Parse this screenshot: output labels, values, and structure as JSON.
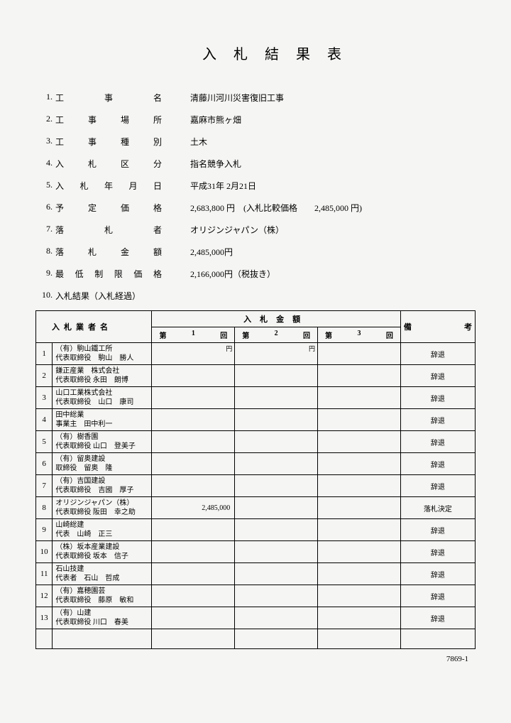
{
  "title": "入札結果表",
  "info": [
    {
      "num": "1.",
      "label": "工事名",
      "value": "清藤川河川災害復旧工事"
    },
    {
      "num": "2.",
      "label": "工事場所",
      "value": "嘉麻市熊ヶ畑"
    },
    {
      "num": "3.",
      "label": "工事種別",
      "value": "土木"
    },
    {
      "num": "4.",
      "label": "入札区分",
      "value": "指名競争入札"
    },
    {
      "num": "5.",
      "label": "入札年月日",
      "value": "平成31年 2月21日"
    },
    {
      "num": "6.",
      "label": "予定価格",
      "value": "2,683,800 円　(入札比較価格　　2,485,000 円)"
    },
    {
      "num": "7.",
      "label": "落札者",
      "value": "オリジンジャパン（株）"
    },
    {
      "num": "8.",
      "label": "落札金額",
      "value": "2,485,000円"
    },
    {
      "num": "9.",
      "label": "最低制限価格",
      "value": "2,166,000円（税抜き）"
    }
  ],
  "section10": {
    "num": "10.",
    "label": "入札結果（入札経過）"
  },
  "table": {
    "headers": {
      "bidder": "入札業者名",
      "amount_group": "入札金額",
      "remarks_left": "備",
      "remarks_right": "考",
      "round1_l": "第",
      "round1_m": "1",
      "round1_r": "回",
      "round2_l": "第",
      "round2_m": "2",
      "round2_r": "回",
      "round3_l": "第",
      "round3_m": "3",
      "round3_r": "回",
      "yen": "円"
    },
    "rows": [
      {
        "num": "1",
        "line1": "（有）駒山鐵工所",
        "line2": "代表取締役　駒山　勝人",
        "amt1": "",
        "amt2": "",
        "amt3": "",
        "remarks": "辞退",
        "show_yen": true
      },
      {
        "num": "2",
        "line1": "鎌正産業　株式会社",
        "line2": "代表取締役 永田　朗博",
        "amt1": "",
        "amt2": "",
        "amt3": "",
        "remarks": "辞退"
      },
      {
        "num": "3",
        "line1": "山口工業株式会社",
        "line2": "代表取締役　山口　康司",
        "amt1": "",
        "amt2": "",
        "amt3": "",
        "remarks": "辞退"
      },
      {
        "num": "4",
        "line1": "田中総業",
        "line2": "事業主　田中利一",
        "amt1": "",
        "amt2": "",
        "amt3": "",
        "remarks": "辞退"
      },
      {
        "num": "5",
        "line1": "（有）樹香園",
        "line2": "代表取締役 山口　登美子",
        "amt1": "",
        "amt2": "",
        "amt3": "",
        "remarks": "辞退"
      },
      {
        "num": "6",
        "line1": "（有）留奥建設",
        "line2": "取締役　留奥　隆",
        "amt1": "",
        "amt2": "",
        "amt3": "",
        "remarks": "辞退"
      },
      {
        "num": "7",
        "line1": "（有）吉国建設",
        "line2": "代表取締役　吉國　厚子",
        "amt1": "",
        "amt2": "",
        "amt3": "",
        "remarks": "辞退"
      },
      {
        "num": "8",
        "line1": "オリジンジャパン（株）",
        "line2": "代表取締役 阪田　幸之助",
        "amt1": "2,485,000",
        "amt2": "",
        "amt3": "",
        "remarks": "落札決定"
      },
      {
        "num": "9",
        "line1": "山崎総建",
        "line2": "代表　山崎　正三",
        "amt1": "",
        "amt2": "",
        "amt3": "",
        "remarks": "辞退"
      },
      {
        "num": "10",
        "line1": "（株）坂本産業建設",
        "line2": "代表取締役 坂本　信子",
        "amt1": "",
        "amt2": "",
        "amt3": "",
        "remarks": "辞退"
      },
      {
        "num": "11",
        "line1": "石山技建",
        "line2": "代表者　石山　哲成",
        "amt1": "",
        "amt2": "",
        "amt3": "",
        "remarks": "辞退"
      },
      {
        "num": "12",
        "line1": "（有）嘉穂園芸",
        "line2": "代表取締役　藤原　敏和",
        "amt1": "",
        "amt2": "",
        "amt3": "",
        "remarks": "辞退"
      },
      {
        "num": "13",
        "line1": "（有）山建",
        "line2": "代表取締役 川口　春美",
        "amt1": "",
        "amt2": "",
        "amt3": "",
        "remarks": "辞退"
      }
    ]
  },
  "footer": "7869-1"
}
